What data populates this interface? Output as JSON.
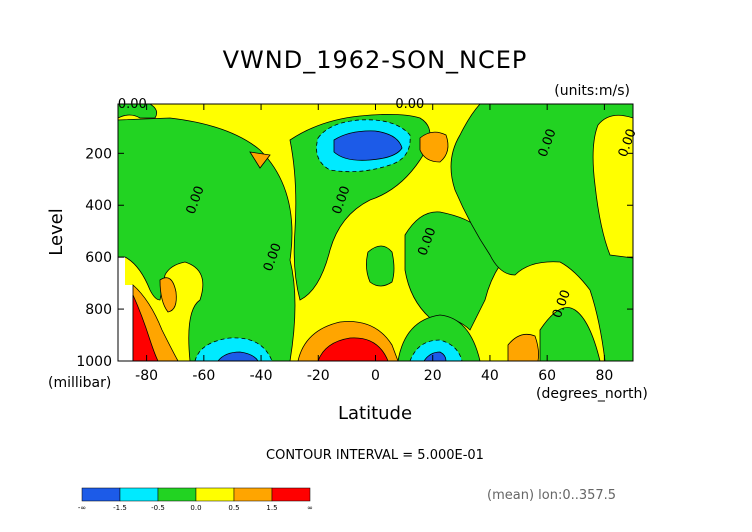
{
  "title": "VWND_1962-SON_NCEP",
  "units_label": "(units:m/s)",
  "contour_interval": "CONTOUR INTERVAL = 5.000E-01",
  "mean_note": "(mean) lon:0..357.5",
  "chart_data": {
    "type": "heatmap",
    "title": "VWND_1962-SON_NCEP",
    "xlabel": "Latitude",
    "xunit_label": "(degrees_north)",
    "ylabel": "Level",
    "yunit_label": "(millibar)",
    "xlim": [
      -90,
      90
    ],
    "ylim": [
      1000,
      10
    ],
    "x_ticks": [
      -80,
      -60,
      -40,
      -20,
      0,
      20,
      40,
      60,
      80
    ],
    "y_ticks": [
      200,
      400,
      600,
      800,
      1000
    ],
    "grid": false,
    "colorbar": {
      "bins": [
        {
          "label": "-∞",
          "color": "#1c5be8"
        },
        {
          "label": "-1.5",
          "color": "#00eaff"
        },
        {
          "label": "-0.5",
          "color": "#22d322"
        },
        {
          "label": "0.0",
          "color": "#ffff00"
        },
        {
          "label": "0.5",
          "color": "#ffa500"
        },
        {
          "label": "1.5",
          "color": "#ff0000"
        }
      ],
      "end_label": "∞"
    },
    "contour_labels": [
      {
        "text": "0.00",
        "x": -85,
        "y": 10
      },
      {
        "text": "0.00",
        "x": 12,
        "y": 10
      },
      {
        "text": "0.00",
        "x": -63,
        "y": 380
      },
      {
        "text": "0.00",
        "x": -36,
        "y": 600
      },
      {
        "text": "0.00",
        "x": -12,
        "y": 380
      },
      {
        "text": "0.00",
        "x": 18,
        "y": 540
      },
      {
        "text": "0.00",
        "x": 60,
        "y": 160
      },
      {
        "text": "0.00",
        "x": 88,
        "y": 160
      },
      {
        "text": "0.00",
        "x": 65,
        "y": 780
      }
    ],
    "features": [
      {
        "name": "southern-hemisphere-green-band",
        "category": "-0.5..0.0"
      },
      {
        "name": "upper-negative-core",
        "x": 0,
        "y": 200,
        "category": "< -1.5"
      },
      {
        "name": "surface-positive-core",
        "x": -10,
        "y": 950,
        "category": "> 1.5"
      },
      {
        "name": "surface-negative-core-south",
        "x": -50,
        "y": 960,
        "category": "< -1.5"
      },
      {
        "name": "surface-negative-core-north",
        "x": 20,
        "y": 960,
        "category": "< -1.5"
      },
      {
        "name": "antarctic-positive-core",
        "x": -85,
        "y": 900,
        "category": "> 1.5"
      }
    ]
  }
}
